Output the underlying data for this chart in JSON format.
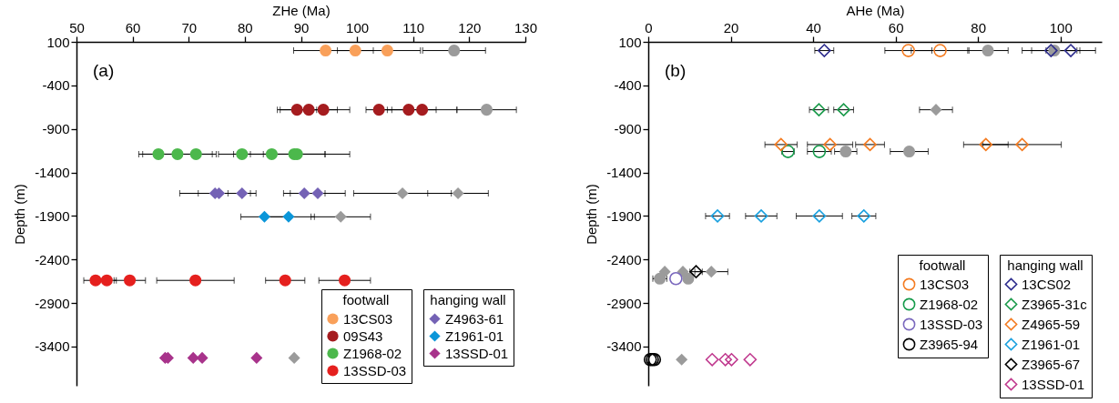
{
  "chart_data": [
    {
      "type": "scatter",
      "xlabel": "ZHe (Ma)",
      "ylabel": "Depth (m)",
      "xlim": [
        50,
        130
      ],
      "xticks": [
        50,
        60,
        70,
        80,
        90,
        100,
        110,
        120,
        130
      ],
      "ylim": [
        -3850,
        100
      ],
      "yticks": [
        100,
        -400,
        -900,
        -1400,
        -1900,
        -2400,
        -2900,
        -3400
      ],
      "legend": "bottom right",
      "legend_title": [
        "footwall",
        "hanging wall"
      ],
      "annotations": [
        "(a)"
      ],
      "series": [
        {
          "color": "#9b9b9b",
          "marker": "circle",
          "x": [
            117.3,
            123.1
          ],
          "values": [
            0,
            -680
          ],
          "xerrors": [
            5.6,
            5.3
          ]
        },
        {
          "color": "#9b9b9b",
          "marker": "diamond",
          "x": [
            108.1,
            118.0,
            97.1,
            88.8
          ],
          "values": [
            -1640,
            -1640,
            -1910,
            -3530
          ],
          "xerrors": [
            8.7,
            5.4,
            5.3,
            null
          ]
        },
        {
          "name": "13CS03",
          "color": "#f9a05a",
          "marker": "circle",
          "x": [
            94.4,
            99.7,
            105.4
          ],
          "values": [
            0,
            0,
            0
          ],
          "xerrors": [
            5.7,
            3.2,
            5.9
          ]
        },
        {
          "name": "09S43",
          "color": "#a51c1f",
          "marker": "circle",
          "x": [
            89.3,
            91.4,
            94.0,
            103.9,
            109.2,
            111.6
          ],
          "values": [
            -680,
            -680,
            -680,
            -680,
            -680,
            -680
          ],
          "xerrors": [
            3.5,
            5.1,
            4.7,
            2.3,
            4.9,
            6.2
          ]
        },
        {
          "name": "Z1968-02",
          "color": "#4cb84c",
          "marker": "circle",
          "x": [
            64.6,
            68.0,
            71.3,
            79.5,
            84.8,
            88.8,
            89.3
          ],
          "values": [
            -1190,
            -1190,
            -1190,
            -1190,
            -1190,
            -1190,
            -1190
          ],
          "xerrors": [
            3.5,
            6.2,
            3.6,
            1.5,
            9.5,
            5.5,
            9.4
          ]
        },
        {
          "name": "13SSD-03",
          "color": "#e5201e",
          "marker": "circle",
          "x": [
            53.4,
            55.4,
            59.5,
            71.2,
            87.2,
            97.8
          ],
          "values": [
            -2640,
            -2640,
            -2640,
            -2640,
            -2640,
            -2640
          ],
          "xerrors": [
            2.1,
            1.7,
            2.8,
            6.9,
            3.5,
            4.6
          ]
        },
        {
          "name": "Z4963-61",
          "color": "#7462b5",
          "marker": "diamond",
          "x": [
            74.7,
            75.4,
            79.5,
            90.6,
            93.0
          ],
          "values": [
            -1640,
            -1640,
            -1640,
            -1640,
            -1640
          ],
          "xerrors": [
            6.3,
            3.7,
            2.5,
            3.7,
            4.9
          ]
        },
        {
          "name": "Z1961-01",
          "color": "#0b96d9",
          "marker": "diamond",
          "x": [
            83.5,
            87.8
          ],
          "values": [
            -1910,
            -1910
          ],
          "xerrors": [
            4.2,
            4.6
          ]
        },
        {
          "name": "13SSD-01",
          "color": "#a8338b",
          "marker": "diamond",
          "x": [
            65.8,
            66.3,
            70.8,
            72.4,
            82.1
          ],
          "values": [
            -3530,
            -3530,
            -3530,
            -3530,
            -3530
          ]
        }
      ]
    },
    {
      "type": "scatter",
      "xlabel": "AHe (Ma)",
      "ylabel": "Depth (m)",
      "xlim": [
        0,
        110
      ],
      "xticks": [
        0,
        20,
        40,
        60,
        80,
        100
      ],
      "ylim": [
        -3850,
        100
      ],
      "yticks": [
        100,
        -400,
        -900,
        -1400,
        -1900,
        -2400,
        -2900,
        -3400
      ],
      "legend": "bottom right",
      "legend_title": [
        "footwall",
        "hanging wall"
      ],
      "annotations": [
        "(b)"
      ],
      "series": [
        {
          "color": "#9b9b9b",
          "marker": "circle",
          "x": [
            82.4,
            98.5,
            47.9,
            63.3,
            2.8,
            9.7
          ],
          "values": [
            0,
            0,
            -1160,
            -1160,
            -2620,
            -2620
          ],
          "xerrors": [
            4.9,
            5.5,
            2.7,
            4.6,
            1.7,
            null
          ]
        },
        {
          "color": "#9b9b9b",
          "marker": "diamond",
          "x": [
            69.8,
            4.0,
            8.4,
            15.3,
            8.1
          ],
          "values": [
            -680,
            -2540,
            -2540,
            -2540,
            -3550
          ],
          "xerrors": [
            4.0,
            null,
            null,
            4.0,
            null
          ]
        },
        {
          "name": "13CS03",
          "color": "#f47b20",
          "marker": "circle",
          "x": [
            63.1,
            70.8
          ],
          "values": [
            0,
            0
          ],
          "xerrors": [
            5.7,
            7.0
          ]
        },
        {
          "name": "Z1968-02",
          "color": "#149a4a",
          "marker": "circle",
          "x": [
            33.9,
            41.5
          ],
          "values": [
            -1160,
            -1160
          ],
          "xerrors": [
            1.5,
            2.9
          ]
        },
        {
          "name": "13SSD-03",
          "color": "#7a68bd",
          "marker": "circle",
          "x": [
            6.7
          ],
          "values": [
            -2620
          ]
        },
        {
          "name": "Z3965-94",
          "color": "#000000",
          "marker": "circle",
          "x": [
            0.5,
            1.0,
            1.5
          ],
          "values": [
            -3550,
            -3550,
            -3550
          ]
        },
        {
          "name": "13CS02",
          "color": "#2b2a8c",
          "marker": "diamond",
          "x": [
            42.7,
            97.7,
            102.5
          ],
          "values": [
            0,
            0,
            0
          ],
          "xerrors": [
            2.3,
            7.0,
            6.0
          ]
        },
        {
          "name": "Z3965-31c",
          "color": "#1a9a4a",
          "marker": "diamond",
          "x": [
            41.4,
            47.4
          ],
          "values": [
            -680,
            -680
          ],
          "xerrors": [
            2.3,
            2.4
          ]
        },
        {
          "name": "Z4965-59",
          "color": "#f47b20",
          "marker": "diamond",
          "x": [
            32.2,
            44.1,
            53.8,
            81.9,
            90.7
          ],
          "values": [
            -1080,
            -1080,
            -1080,
            -1080,
            -1080
          ],
          "xerrors": [
            3.9,
            5.5,
            3.5,
            5.4,
            9.5
          ]
        },
        {
          "name": "Z1961-01",
          "color": "#19a0df",
          "marker": "diamond",
          "x": [
            16.8,
            27.4,
            41.5,
            52.3
          ],
          "values": [
            -1900,
            -1900,
            -1900,
            -1900
          ],
          "xerrors": [
            2.9,
            3.8,
            5.6,
            2.9
          ]
        },
        {
          "name": "Z3965-67",
          "color": "#000000",
          "marker": "diamond",
          "x": [
            11.6
          ],
          "values": [
            -2540
          ],
          "xerrors": [
            1.5
          ]
        },
        {
          "name": "13SSD-01",
          "color": "#c0398e",
          "marker": "diamond",
          "x": [
            15.5,
            18.7,
            20.2,
            24.7
          ],
          "values": [
            -3550,
            -3550,
            -3550,
            -3550
          ]
        }
      ]
    }
  ]
}
